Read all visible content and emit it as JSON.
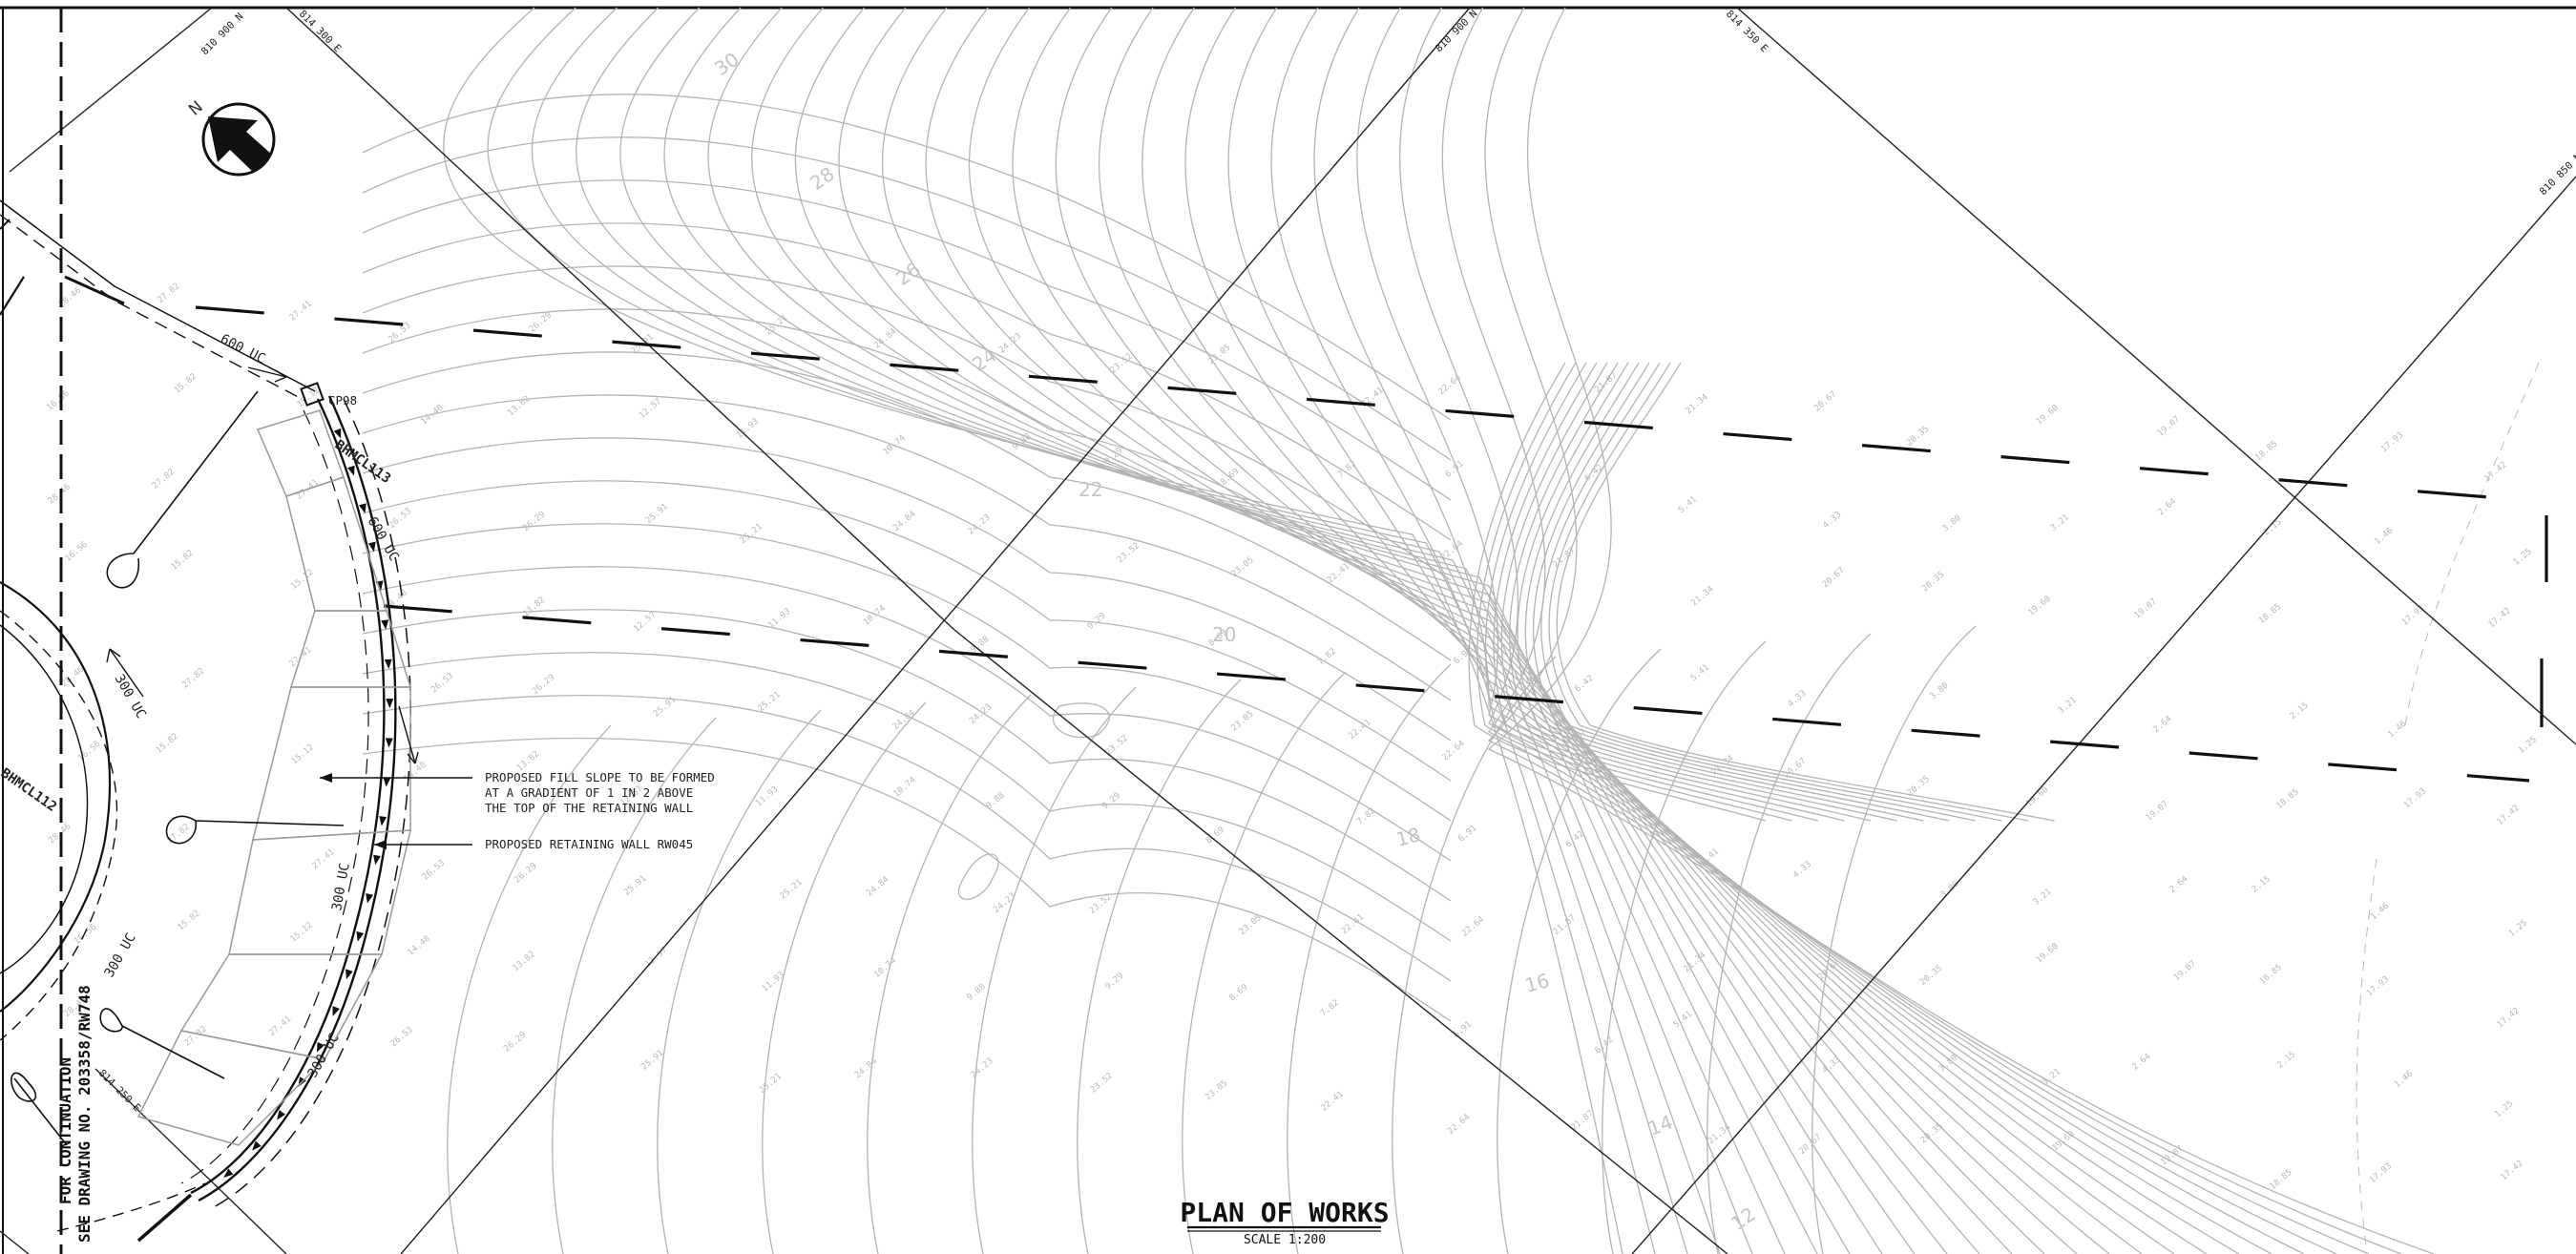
{
  "title": "PLAN OF WORKS",
  "scale": "SCALE 1:200",
  "north": "N",
  "continuation": {
    "line1": "FOR CONTINUATION",
    "line2": "SEE DRAWING NO. 203358/RW748"
  },
  "notes": {
    "fill_slope": [
      "PROPOSED FILL SLOPE TO BE FORMED",
      "AT A GRADIENT OF 1 IN 2 ABOVE",
      "THE TOP OF THE RETAINING WALL"
    ],
    "retaining_wall": "PROPOSED RETAINING WALL RW045"
  },
  "grid_labels": [
    "810 900 N",
    "814 300 E",
    "810 900 N",
    "814 350 E",
    "810 850 N",
    "814 250 E"
  ],
  "control_point": "CP98",
  "chainages": [
    "BHMCL113",
    "BHMCL112"
  ],
  "drain_labels": [
    "600 UC",
    "600 UC",
    "300 UC",
    "300 UC",
    "300 UC",
    "300 UC"
  ],
  "contour_labels": [
    "30",
    "28",
    "26",
    "24",
    "22",
    "20",
    "18",
    "16",
    "14",
    "12"
  ],
  "spot_levels": [
    "28.46",
    "27.82",
    "27.41",
    "26.53",
    "26.29",
    "25.91",
    "25.21",
    "24.84",
    "24.23",
    "23.52",
    "23.05",
    "22.41",
    "22.64",
    "21.87",
    "21.34",
    "20.67",
    "20.35",
    "19.60",
    "19.07",
    "18.85",
    "17.93",
    "17.42",
    "16.56",
    "15.82",
    "15.12",
    "14.48",
    "13.82",
    "12.57",
    "11.93",
    "10.74",
    "9.88",
    "9.29",
    "8.69",
    "7.82",
    "6.91",
    "6.42",
    "5.41",
    "4.33",
    "3.80",
    "3.21",
    "2.64",
    "2.15",
    "1.46",
    "1.25"
  ]
}
